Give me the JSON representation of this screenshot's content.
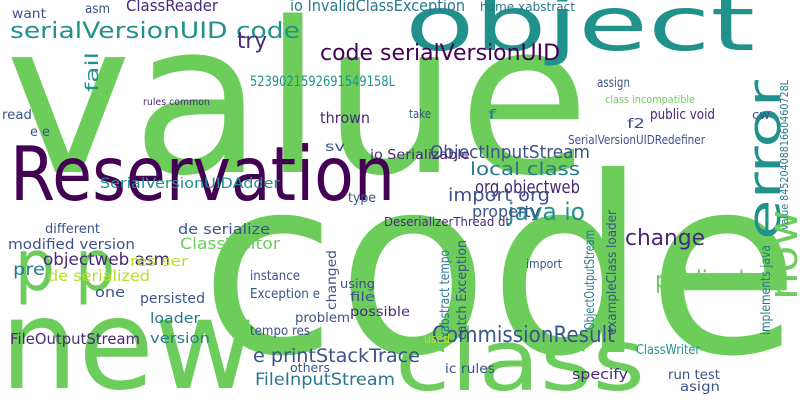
{
  "words": [
    "value",
    "code",
    "new",
    "object",
    "Reservation",
    "class",
    "error",
    "serialVersionUID code",
    "code serialVersionUID",
    "now",
    "p p",
    "CommissionResult",
    "public class",
    "e printStackTrace",
    "FileInputStream",
    "ObjectInputStream",
    "local class",
    "org objectweb",
    "java io",
    "change",
    "import org",
    "property",
    "ClassVisitor",
    "objectweb asm",
    "modified version",
    "de serialize",
    "different",
    "pre",
    "de serialized",
    "res ser",
    "persisted",
    "one",
    "loader",
    "version",
    "FileOutputStream",
    "SerialVersionUIDAdder",
    "try",
    "ClassReader",
    "asm",
    "want",
    "5239021592691549158L",
    "io InvalidClassException",
    "home xabstract",
    "fail",
    "rules common",
    "thrown",
    "type",
    "sv",
    "io Serializable",
    "DeserializerThread dt",
    "instance",
    "Exception e",
    "problem",
    "using",
    "file",
    "possible",
    "changed",
    "xabstract tempo",
    "catch Exception",
    "ObjectOutputStream",
    "exampleClass loader",
    "implements java",
    "value 8452040881660460728L",
    "tempo res",
    "others",
    "ic rules",
    "specify",
    "run test",
    "ClassWriter",
    "asign",
    "SerialVersionUIDRedefiner",
    "public void",
    "f2",
    "class incompatible",
    "assign",
    "take",
    "f",
    "import",
    "used",
    "read",
    "e e",
    "cw"
  ]
}
